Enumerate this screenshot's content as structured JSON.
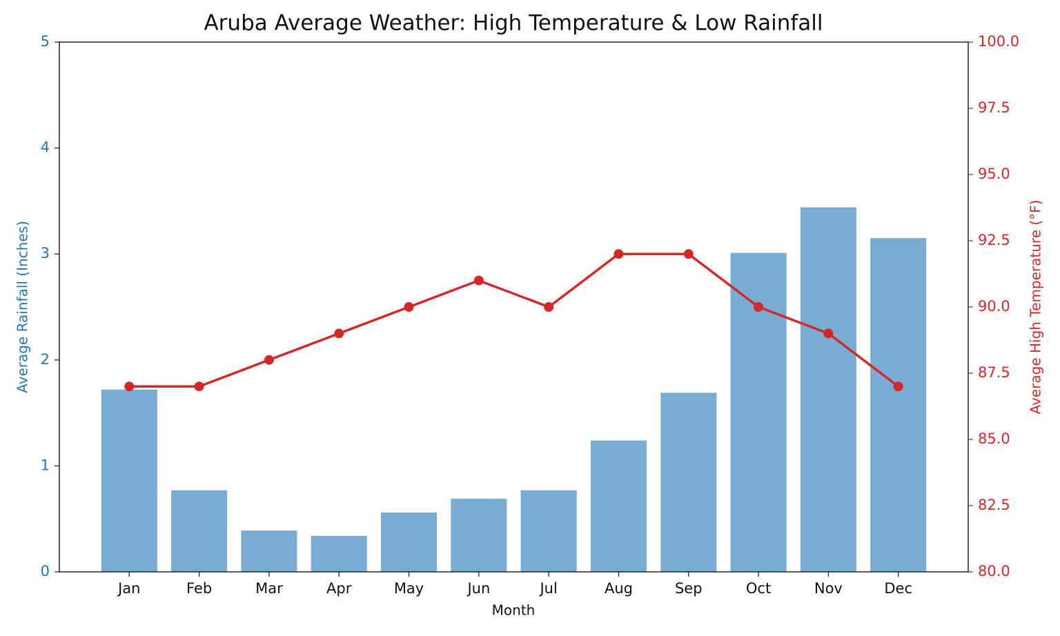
{
  "chart_data": {
    "type": "bar+line",
    "title": "Aruba Average Weather: High Temperature & Low Rainfall",
    "xlabel": "Month",
    "ylabel": "Average Rainfall (Inches)",
    "y2label": "Average High Temperature (°F)",
    "categories": [
      "Jan",
      "Feb",
      "Mar",
      "Apr",
      "May",
      "Jun",
      "Jul",
      "Aug",
      "Sep",
      "Oct",
      "Nov",
      "Dec"
    ],
    "series": [
      {
        "type": "bar",
        "color": "#78acd2",
        "values": [
          1.72,
          0.77,
          0.39,
          0.34,
          0.56,
          0.69,
          0.77,
          1.24,
          1.69,
          3.01,
          3.44,
          3.15
        ]
      },
      {
        "type": "line",
        "axis": "y2",
        "color": "#d62728",
        "values": [
          87,
          87,
          88,
          89,
          90,
          91,
          90,
          92,
          92,
          90,
          89,
          87
        ]
      }
    ],
    "ylim": [
      0,
      5
    ],
    "yticks": [
      0,
      1,
      2,
      3,
      4,
      5
    ],
    "ycolor": "#1f77b4",
    "y2lim": [
      80,
      100
    ],
    "y2ticks": [
      {
        "value": 80,
        "label": "80.0"
      },
      82.5,
      {
        "value": 85,
        "label": "85.0"
      },
      87.5,
      {
        "value": 90,
        "label": "90.0"
      },
      92.5,
      {
        "value": 95,
        "label": "95.0"
      },
      97.5,
      {
        "value": 100,
        "label": "100.0"
      }
    ],
    "y2color": "#d62728"
  }
}
